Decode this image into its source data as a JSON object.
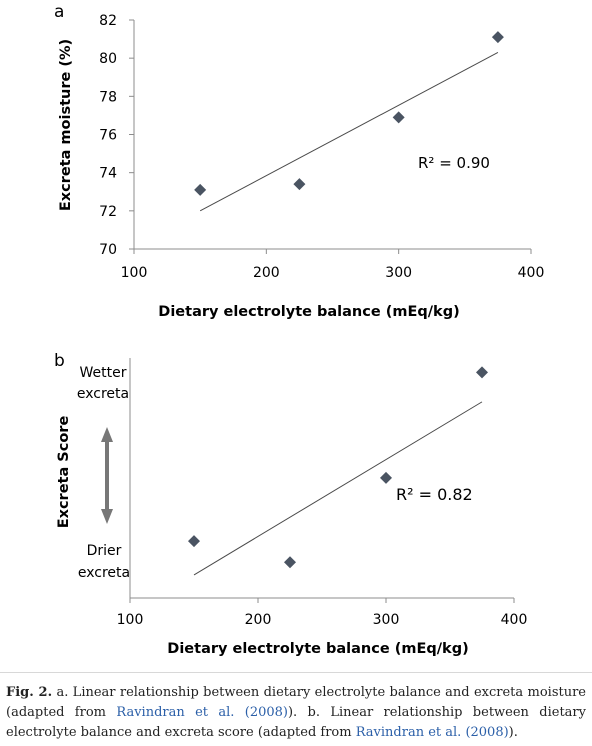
{
  "chart_data": [
    {
      "type": "scatter",
      "panel": "a",
      "xlabel": "Dietary electrolyte balance (mEq/kg)",
      "ylabel": "Excreta moisture (%)",
      "xlim": [
        100,
        400
      ],
      "ylim": [
        70,
        82
      ],
      "xticks": [
        100,
        200,
        300,
        400
      ],
      "yticks": [
        70,
        72,
        74,
        76,
        78,
        80,
        82
      ],
      "points": [
        {
          "x": 150,
          "y": 73.1
        },
        {
          "x": 225,
          "y": 73.4
        },
        {
          "x": 300,
          "y": 76.9
        },
        {
          "x": 375,
          "y": 81.1
        }
      ],
      "trendline": {
        "x": [
          150,
          375
        ],
        "y": [
          72.0,
          80.3
        ]
      },
      "r2_label": "R² = 0.90",
      "grid": false
    },
    {
      "type": "scatter",
      "panel": "b",
      "xlabel": "Dietary electrolyte balance (mEq/kg)",
      "ylabel": "Excreta Score",
      "xlim": [
        100,
        400
      ],
      "xticks": [
        100,
        200,
        300,
        400
      ],
      "ylim": [
        0,
        10
      ],
      "y_top_label": [
        "Wetter",
        "excreta"
      ],
      "y_bottom_label": [
        "Drier",
        "excreta"
      ],
      "points": [
        {
          "x": 150,
          "y": 1.7
        },
        {
          "x": 225,
          "y": 0.7
        },
        {
          "x": 300,
          "y": 4.7
        },
        {
          "x": 375,
          "y": 9.7
        }
      ],
      "trendline": {
        "x": [
          150,
          375
        ],
        "y": [
          0.1,
          8.3
        ]
      },
      "r2_label": "R² = 0.82",
      "grid": false
    }
  ],
  "caption": {
    "label": "Fig. 2.",
    "text_1": " a. Linear relationship between dietary electrolyte balance and excreta moisture (adapted from ",
    "ref_1": "Ravindran et al. (2008)",
    "text_2": "). b. Linear relationship between dietary electrolyte balance and excreta score (adapted from ",
    "ref_2": "Ravindran et al. (2008)",
    "text_3": ")."
  },
  "colors": {
    "marker": "#4a5462",
    "trendline": "#4a4a4a",
    "axis": "#8c8c8c",
    "arrow": "#777777",
    "reference_link": "#2b5fa8"
  }
}
